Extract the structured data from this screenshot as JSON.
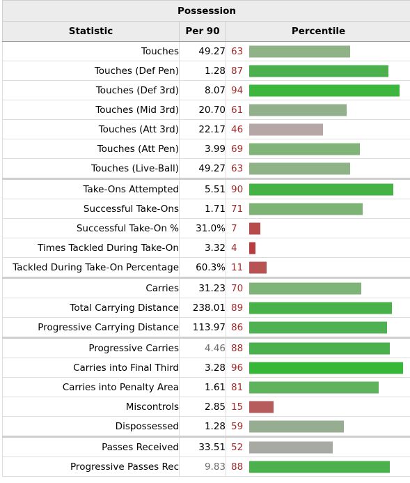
{
  "title": "Possession",
  "headers": {
    "statistic": "Statistic",
    "per90": "Per 90",
    "percentile": "Percentile"
  },
  "rows": [
    {
      "stat": "Touches",
      "per90": "49.27",
      "pct": 63,
      "color": "#8fb287",
      "dim": false,
      "sep": false
    },
    {
      "stat": "Touches (Def Pen)",
      "per90": "1.28",
      "pct": 87,
      "color": "#4cb04f",
      "dim": false,
      "sep": false
    },
    {
      "stat": "Touches (Def 3rd)",
      "per90": "8.07",
      "pct": 94,
      "color": "#3db63d",
      "dim": false,
      "sep": false
    },
    {
      "stat": "Touches (Mid 3rd)",
      "per90": "20.70",
      "pct": 61,
      "color": "#93b08d",
      "dim": false,
      "sep": false
    },
    {
      "stat": "Touches (Att 3rd)",
      "per90": "22.17",
      "pct": 46,
      "color": "#b6a6a6",
      "dim": false,
      "sep": false
    },
    {
      "stat": "Touches (Att Pen)",
      "per90": "3.99",
      "pct": 69,
      "color": "#80b479",
      "dim": false,
      "sep": false
    },
    {
      "stat": "Touches (Live-Ball)",
      "per90": "49.27",
      "pct": 63,
      "color": "#8fb287",
      "dim": false,
      "sep": false
    },
    {
      "stat": "Take-Ons Attempted",
      "per90": "5.51",
      "pct": 90,
      "color": "#44b244",
      "dim": false,
      "sep": true
    },
    {
      "stat": "Successful Take-Ons",
      "per90": "1.71",
      "pct": 71,
      "color": "#7db476",
      "dim": false,
      "sep": false
    },
    {
      "stat": "Successful Take-On %",
      "per90": "31.0%",
      "pct": 7,
      "color": "#b74a4a",
      "dim": false,
      "sep": false
    },
    {
      "stat": "Times Tackled During Take-On",
      "per90": "3.32",
      "pct": 4,
      "color": "#b83e3e",
      "dim": false,
      "sep": false
    },
    {
      "stat": "Tackled During Take-On Percentage",
      "per90": "60.3%",
      "pct": 11,
      "color": "#b75353",
      "dim": false,
      "sep": false
    },
    {
      "stat": "Carries",
      "per90": "31.23",
      "pct": 70,
      "color": "#7fb478",
      "dim": false,
      "sep": true
    },
    {
      "stat": "Total Carrying Distance",
      "per90": "238.01",
      "pct": 89,
      "color": "#48b249",
      "dim": false,
      "sep": false
    },
    {
      "stat": "Progressive Carrying Distance",
      "per90": "113.97",
      "pct": 86,
      "color": "#4fb152",
      "dim": false,
      "sep": false
    },
    {
      "stat": "Progressive Carries",
      "per90": "4.46",
      "pct": 88,
      "color": "#4bb14d",
      "dim": true,
      "sep": true
    },
    {
      "stat": "Carries into Final Third",
      "per90": "3.28",
      "pct": 96,
      "color": "#37b737",
      "dim": false,
      "sep": false
    },
    {
      "stat": "Carries into Penalty Area",
      "per90": "1.61",
      "pct": 81,
      "color": "#5eb35c",
      "dim": false,
      "sep": false
    },
    {
      "stat": "Miscontrols",
      "per90": "2.85",
      "pct": 15,
      "color": "#b75c5c",
      "dim": false,
      "sep": false
    },
    {
      "stat": "Dispossessed",
      "per90": "1.28",
      "pct": 59,
      "color": "#97ad92",
      "dim": false,
      "sep": false
    },
    {
      "stat": "Passes Received",
      "per90": "33.51",
      "pct": 52,
      "color": "#a7aaa3",
      "dim": false,
      "sep": true
    },
    {
      "stat": "Progressive Passes Rec",
      "per90": "9.83",
      "pct": 88,
      "color": "#4bb14d",
      "dim": true,
      "sep": false
    }
  ]
}
